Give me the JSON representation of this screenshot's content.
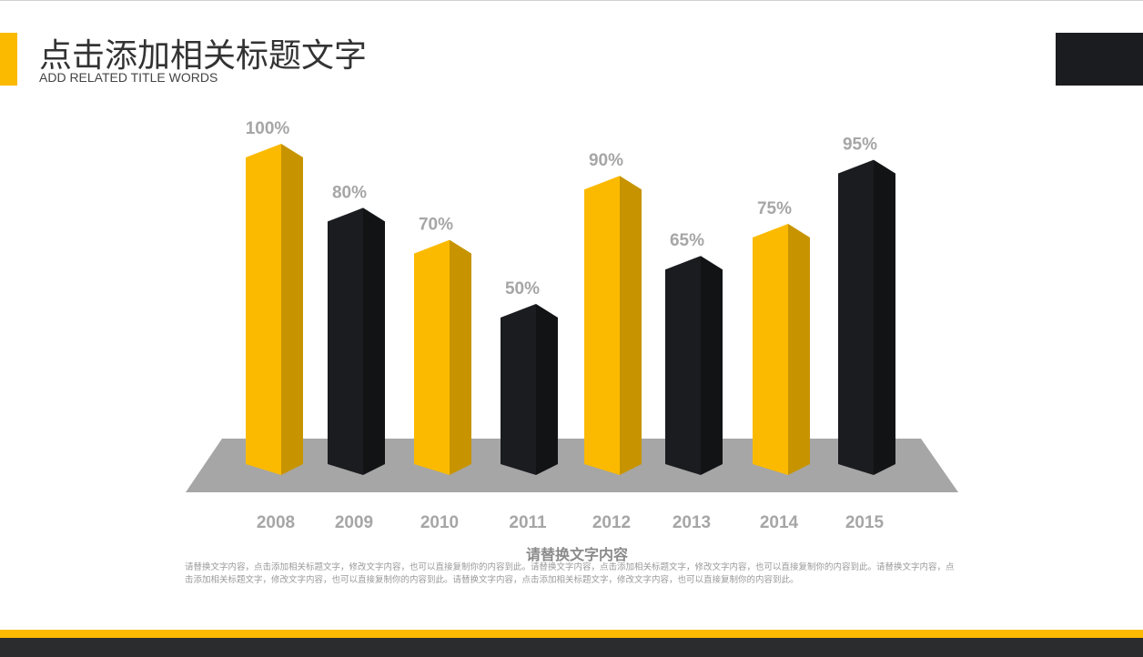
{
  "header": {
    "title": "点击添加相关标题文字",
    "subtitle": "ADD RELATED TITLE WORDS"
  },
  "colors": {
    "accent": "#fbba00",
    "accent_side": "#c79400",
    "dark": "#1b1c1f",
    "dark_side": "#121315",
    "floor": "#a6a6a6",
    "label": "#a6a6a6",
    "footer_dark": "#2a2c2e"
  },
  "chart_data": {
    "type": "bar",
    "title": "",
    "xlabel": "",
    "ylabel": "",
    "ylim": [
      0,
      100
    ],
    "grid": false,
    "categories": [
      "2008",
      "2009",
      "2010",
      "2011",
      "2012",
      "2013",
      "2014",
      "2015"
    ],
    "values": [
      100,
      80,
      70,
      50,
      90,
      65,
      75,
      95
    ],
    "value_labels": [
      "100%",
      "80%",
      "70%",
      "50%",
      "90%",
      "65%",
      "75%",
      "95%"
    ],
    "bar_colors": [
      "yellow",
      "black",
      "yellow",
      "black",
      "yellow",
      "black",
      "yellow",
      "black"
    ],
    "style": "3d-prism-bars-on-gray-floor"
  },
  "content": {
    "heading": "请替换文字内容",
    "body": "请替换文字内容，点击添加相关标题文字，修改文字内容，也可以直接复制你的内容到此。请替换文字内容，点击添加相关标题文字，修改文字内容，也可以直接复制你的内容到此。请替换文字内容，点击添加相关标题文字，修改文字内容，也可以直接复制你的内容到此。请替换文字内容，点击添加相关标题文字，修改文字内容，也可以直接复制你的内容到此。"
  }
}
